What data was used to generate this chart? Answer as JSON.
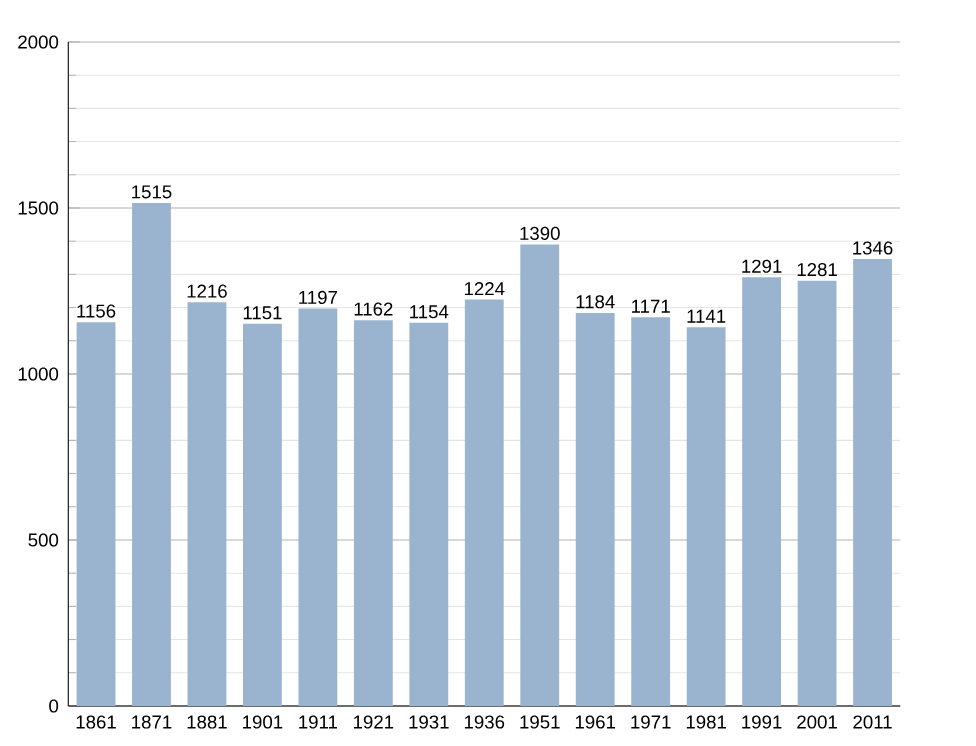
{
  "chart_data": {
    "type": "bar",
    "categories": [
      "1861",
      "1871",
      "1881",
      "1901",
      "1911",
      "1921",
      "1931",
      "1936",
      "1951",
      "1961",
      "1971",
      "1981",
      "1991",
      "2001",
      "2011"
    ],
    "values": [
      1156,
      1515,
      1216,
      1151,
      1197,
      1162,
      1154,
      1224,
      1390,
      1184,
      1171,
      1141,
      1291,
      1281,
      1346
    ],
    "color": "#9ab3cf",
    "data_labels": true,
    "grid": "y",
    "ylim": [
      0,
      2000
    ],
    "yticks": [
      0,
      500,
      1000,
      1500,
      2000
    ]
  }
}
